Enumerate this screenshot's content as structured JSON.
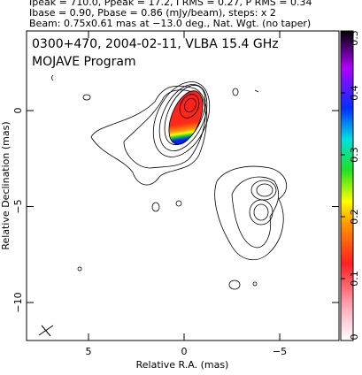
{
  "chart_data": {
    "type": "contour",
    "header": [
      "Ipeak = 710.0, Ppeak = 17.2, I RMS = 0.27, P RMS = 0.34",
      "Ibase = 0.90, Pbase = 0.86 (mJy/beam), steps: x 2",
      "Beam: 0.75x0.61 mas at −13.0 deg., Nat. Wgt. (no taper)"
    ],
    "title": "0300+470, 2004-02-11, VLBA 15.4 GHz",
    "subtitle": "MOJAVE Program",
    "x_label": "Relative R.A. (mas)",
    "y_label": "Relative Declination (mas)",
    "xlim": [
      8.24,
      -8.1
    ],
    "xticks": [
      5,
      0,
      {
        "value": -5,
        "label": "−5"
      }
    ],
    "ylim": [
      -11.98,
      4.15
    ],
    "yticks": [
      0,
      {
        "value": -5,
        "label": "−5"
      },
      {
        "value": -10,
        "label": "−10"
      }
    ],
    "colorbar": {
      "ylim": [
        0,
        0.5
      ],
      "ticks": [
        0,
        0.1,
        0.2,
        0.3,
        0.4,
        0.5
      ]
    }
  }
}
